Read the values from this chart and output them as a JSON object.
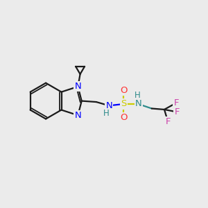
{
  "background_color": "#ebebeb",
  "bond_color": "#1a1a1a",
  "N_blue": "#0000ff",
  "N_teal": "#2e8b8b",
  "S_color": "#cccc00",
  "O_color": "#ff3333",
  "F_color": "#cc44aa",
  "H_color": "#2e8b8b",
  "figsize": [
    3.0,
    3.0
  ],
  "dpi": 100,
  "xlim": [
    0,
    10
  ],
  "ylim": [
    0,
    10
  ]
}
